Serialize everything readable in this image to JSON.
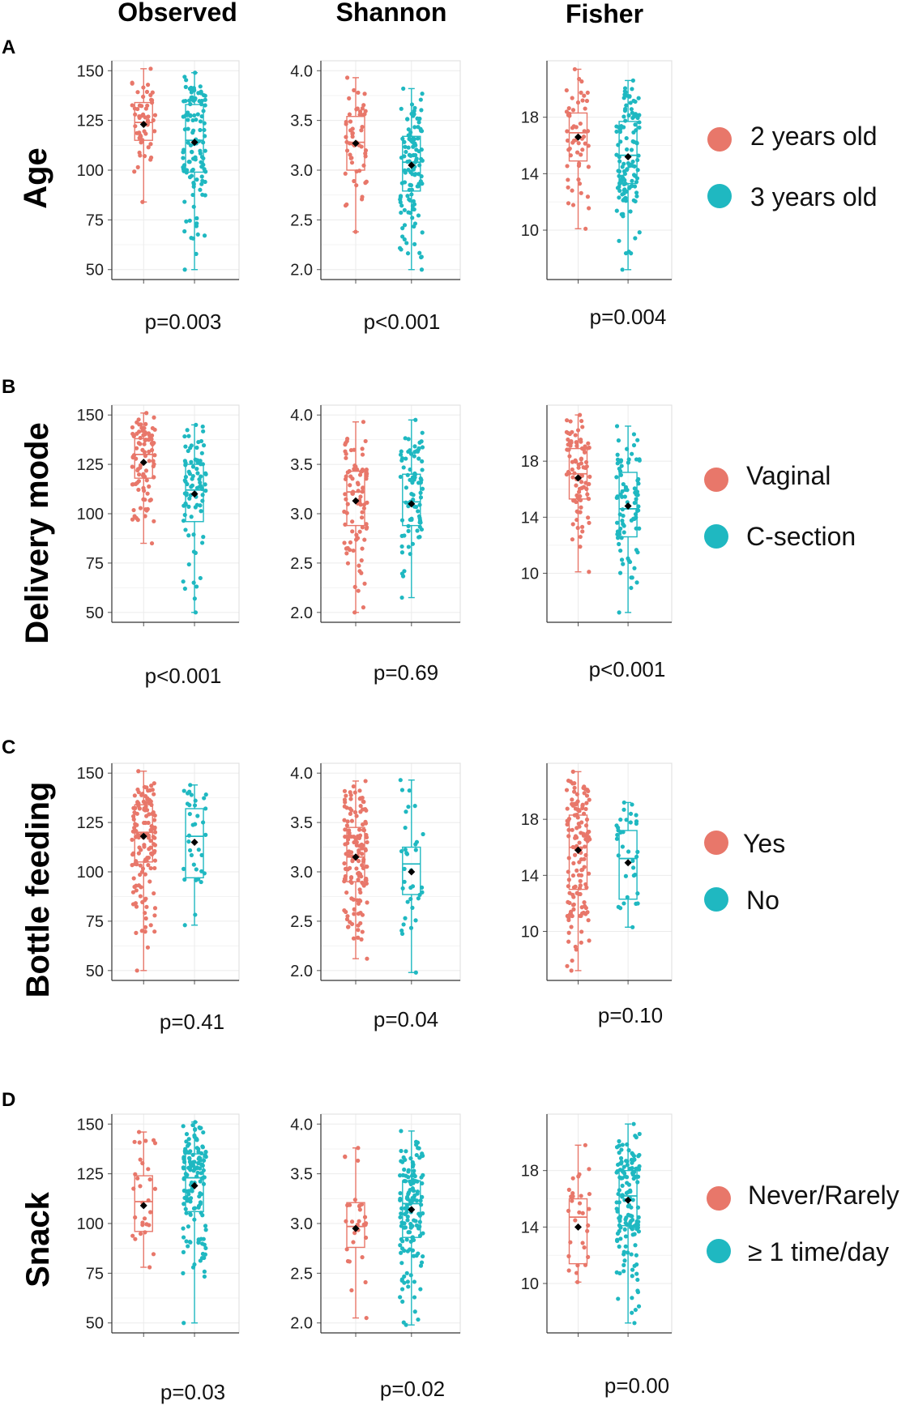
{
  "columns": [
    "Observed",
    "Shannon",
    "Fisher"
  ],
  "colors": {
    "group1": "#E8776A",
    "group2": "#1FB8C1",
    "mean": "#000000",
    "grid": "#EBEBEB"
  },
  "chart_data": [
    {
      "type": "box",
      "panel": "A",
      "row_title": "Age",
      "legend": [
        "2 years old",
        "3 years old"
      ],
      "subplots": [
        {
          "metric": "Observed",
          "pvalue": "p=0.003",
          "ylim": [
            45,
            155
          ],
          "ticks": [
            "50",
            "75",
            "100",
            "125",
            "150"
          ],
          "tick_values": [
            50,
            75,
            100,
            125,
            150
          ],
          "n": [
            55,
            120
          ],
          "groups": [
            {
              "min": 84,
              "q1": 115,
              "median": 124,
              "q3": 134,
              "max": 151,
              "mean": 123
            },
            {
              "min": 50,
              "q1": 99,
              "median": 115,
              "q3": 133,
              "max": 149,
              "mean": 114
            }
          ]
        },
        {
          "metric": "Shannon",
          "pvalue": "p<0.001",
          "ylim": [
            1.9,
            4.1
          ],
          "ticks": [
            "2.0",
            "2.5",
            "3.0",
            "3.5",
            "4.0"
          ],
          "tick_values": [
            2.0,
            2.5,
            3.0,
            3.5,
            4.0
          ],
          "n": [
            55,
            120
          ],
          "groups": [
            {
              "min": 2.38,
              "q1": 3.0,
              "median": 3.28,
              "q3": 3.54,
              "max": 3.93,
              "mean": 3.27
            },
            {
              "min": 2.0,
              "q1": 2.79,
              "median": 3.08,
              "q3": 3.34,
              "max": 3.82,
              "mean": 3.05
            }
          ]
        },
        {
          "metric": "Fisher",
          "pvalue": "p=0.004",
          "ylim": [
            6.5,
            22
          ],
          "ticks": [
            "10",
            "14",
            "18"
          ],
          "tick_values": [
            10,
            14,
            18
          ],
          "n": [
            55,
            120
          ],
          "groups": [
            {
              "min": 10.1,
              "q1": 14.9,
              "median": 16.9,
              "q3": 18.3,
              "max": 21.4,
              "mean": 16.6
            },
            {
              "min": 7.2,
              "q1": 13.3,
              "median": 15.3,
              "q3": 17.7,
              "max": 20.6,
              "mean": 15.2
            }
          ]
        }
      ]
    },
    {
      "type": "box",
      "panel": "B",
      "row_title": "Delivery mode",
      "legend": [
        "Vaginal",
        "C-section"
      ],
      "subplots": [
        {
          "metric": "Observed",
          "pvalue": "p<0.001",
          "ylim": [
            45,
            155
          ],
          "ticks": [
            "50",
            "75",
            "100",
            "125",
            "150"
          ],
          "tick_values": [
            50,
            75,
            100,
            125,
            150
          ],
          "n": [
            90,
            85
          ],
          "groups": [
            {
              "min": 85,
              "q1": 118,
              "median": 130,
              "q3": 138,
              "max": 151,
              "mean": 126
            },
            {
              "min": 50,
              "q1": 96,
              "median": 112,
              "q3": 125,
              "max": 145,
              "mean": 110
            }
          ]
        },
        {
          "metric": "Shannon",
          "pvalue": "p=0.69",
          "ylim": [
            1.9,
            4.1
          ],
          "ticks": [
            "2.0",
            "2.5",
            "3.0",
            "3.5",
            "4.0"
          ],
          "tick_values": [
            2.0,
            2.5,
            3.0,
            3.5,
            4.0
          ],
          "n": [
            90,
            85
          ],
          "groups": [
            {
              "min": 2.0,
              "q1": 2.88,
              "median": 3.22,
              "q3": 3.43,
              "max": 3.93,
              "mean": 3.13
            },
            {
              "min": 2.15,
              "q1": 2.88,
              "median": 3.12,
              "q3": 3.4,
              "max": 3.95,
              "mean": 3.1
            }
          ]
        },
        {
          "metric": "Fisher",
          "pvalue": "p<0.001",
          "ylim": [
            6.5,
            22
          ],
          "ticks": [
            "10",
            "14",
            "18"
          ],
          "tick_values": [
            10,
            14,
            18
          ],
          "n": [
            90,
            85
          ],
          "groups": [
            {
              "min": 10.1,
              "q1": 15.3,
              "median": 17.1,
              "q3": 18.9,
              "max": 21.3,
              "mean": 16.8
            },
            {
              "min": 7.2,
              "q1": 12.6,
              "median": 14.6,
              "q3": 17.2,
              "max": 20.5,
              "mean": 14.8
            }
          ]
        }
      ]
    },
    {
      "type": "box",
      "panel": "C",
      "row_title": "Bottle feeding",
      "legend": [
        "Yes",
        "No"
      ],
      "subplots": [
        {
          "metric": "Observed",
          "pvalue": "p=0.41",
          "ylim": [
            45,
            155
          ],
          "ticks": [
            "50",
            "75",
            "100",
            "125",
            "150"
          ],
          "tick_values": [
            50,
            75,
            100,
            125,
            150
          ],
          "n": [
            140,
            35
          ],
          "groups": [
            {
              "min": 50,
              "q1": 105,
              "median": 120,
              "q3": 134,
              "max": 151,
              "mean": 118
            },
            {
              "min": 73,
              "q1": 97,
              "median": 118,
              "q3": 132,
              "max": 144,
              "mean": 115
            }
          ]
        },
        {
          "metric": "Shannon",
          "pvalue": "p=0.04",
          "ylim": [
            1.9,
            4.1
          ],
          "ticks": [
            "2.0",
            "2.5",
            "3.0",
            "3.5",
            "4.0"
          ],
          "tick_values": [
            2.0,
            2.5,
            3.0,
            3.5,
            4.0
          ],
          "n": [
            140,
            35
          ],
          "groups": [
            {
              "min": 2.12,
              "q1": 2.9,
              "median": 3.15,
              "q3": 3.45,
              "max": 3.92,
              "mean": 3.15
            },
            {
              "min": 1.98,
              "q1": 2.77,
              "median": 3.08,
              "q3": 3.25,
              "max": 3.93,
              "mean": 3.0
            }
          ]
        },
        {
          "metric": "Fisher",
          "pvalue": "p=0.10",
          "ylim": [
            6.5,
            22
          ],
          "ticks": [
            "10",
            "14",
            "18"
          ],
          "tick_values": [
            10,
            14,
            18
          ],
          "n": [
            140,
            35
          ],
          "groups": [
            {
              "min": 7.2,
              "q1": 13.0,
              "median": 16.0,
              "q3": 18.3,
              "max": 21.4,
              "mean": 15.8
            },
            {
              "min": 10.3,
              "q1": 12.3,
              "median": 15.2,
              "q3": 17.2,
              "max": 19.2,
              "mean": 14.9
            }
          ]
        }
      ]
    },
    {
      "type": "box",
      "panel": "D",
      "row_title": "Snack",
      "legend": [
        "Never/Rarely",
        "≥ 1 time/day"
      ],
      "subplots": [
        {
          "metric": "Observed",
          "pvalue": "p=0.03",
          "ylim": [
            45,
            155
          ],
          "ticks": [
            "50",
            "75",
            "100",
            "125",
            "150"
          ],
          "tick_values": [
            50,
            75,
            100,
            125,
            150
          ],
          "n": [
            30,
            145
          ],
          "groups": [
            {
              "min": 78,
              "q1": 96,
              "median": 111,
              "q3": 124,
              "max": 146,
              "mean": 109
            },
            {
              "min": 50,
              "q1": 106,
              "median": 123,
              "q3": 135,
              "max": 151,
              "mean": 119
            }
          ]
        },
        {
          "metric": "Shannon",
          "pvalue": "p=0.02",
          "ylim": [
            1.9,
            4.1
          ],
          "ticks": [
            "2.0",
            "2.5",
            "3.0",
            "3.5",
            "4.0"
          ],
          "tick_values": [
            2.0,
            2.5,
            3.0,
            3.5,
            4.0
          ],
          "n": [
            30,
            145
          ],
          "groups": [
            {
              "min": 2.05,
              "q1": 2.76,
              "median": 2.97,
              "q3": 3.21,
              "max": 3.76,
              "mean": 2.95
            },
            {
              "min": 1.98,
              "q1": 2.86,
              "median": 3.2,
              "q3": 3.43,
              "max": 3.93,
              "mean": 3.14
            }
          ]
        },
        {
          "metric": "Fisher",
          "pvalue": "p=0.00",
          "ylim": [
            6.5,
            22
          ],
          "ticks": [
            "10",
            "14",
            "18"
          ],
          "tick_values": [
            10,
            14,
            18
          ],
          "n": [
            30,
            145
          ],
          "groups": [
            {
              "min": 10.1,
              "q1": 11.4,
              "median": 14.7,
              "q3": 16.0,
              "max": 19.8,
              "mean": 14.0
            },
            {
              "min": 7.2,
              "q1": 14.1,
              "median": 16.2,
              "q3": 18.0,
              "max": 21.3,
              "mean": 15.9
            }
          ]
        }
      ]
    }
  ]
}
